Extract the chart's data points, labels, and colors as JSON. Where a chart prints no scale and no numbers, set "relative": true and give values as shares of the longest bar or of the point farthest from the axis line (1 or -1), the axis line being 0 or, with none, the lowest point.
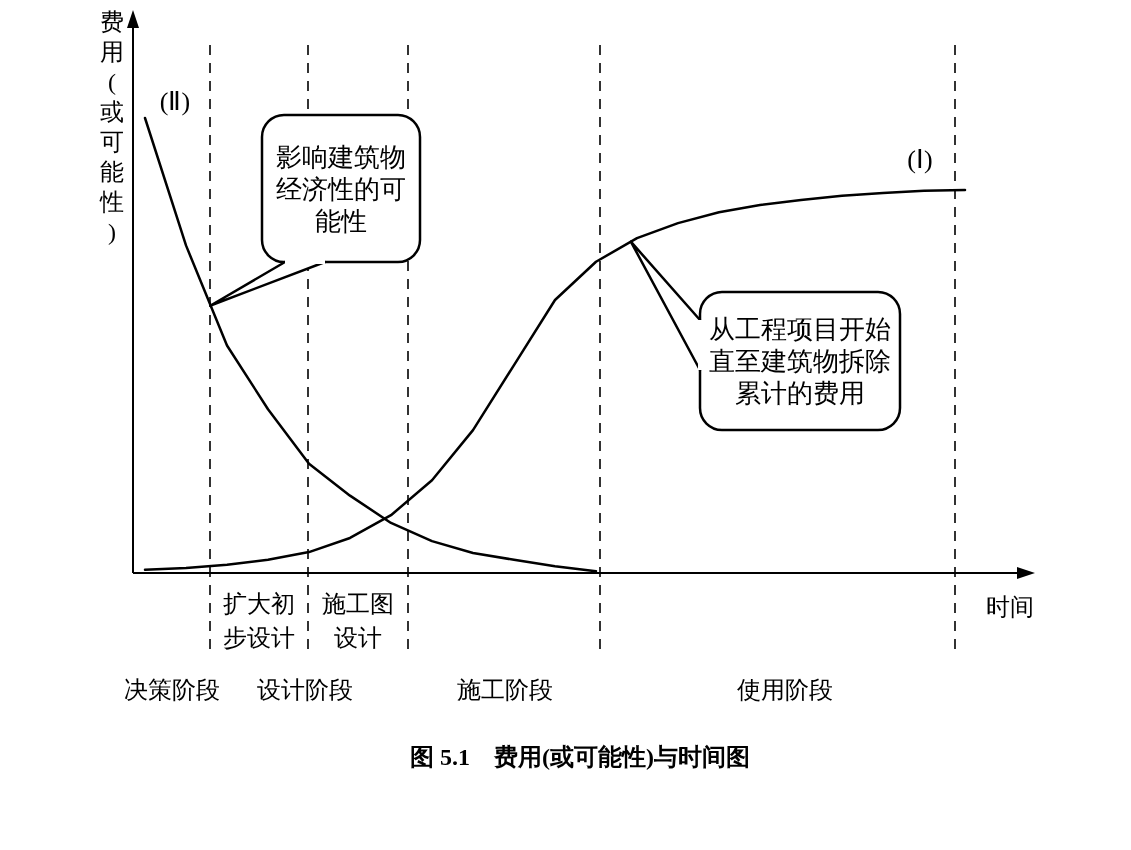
{
  "chart_data": {
    "type": "line",
    "relative": true,
    "title": "图 5.1　费用(或可能性)与时间图",
    "xlabel": "时间",
    "ylabel": "费用(或可能性)",
    "categories": [
      null,
      null,
      null,
      null,
      null,
      null,
      null,
      null,
      null,
      null,
      null,
      null,
      null,
      null,
      null,
      null,
      null,
      null,
      null,
      null,
      null
    ],
    "series": [
      {
        "name": "(Ⅰ)",
        "color": "#000000",
        "values": [
          0.007,
          0.011,
          0.018,
          0.029,
          0.046,
          0.077,
          0.127,
          0.204,
          0.314,
          0.457,
          0.6,
          0.684,
          0.736,
          0.769,
          0.793,
          0.809,
          0.82,
          0.829,
          0.835,
          0.84,
          0.842
        ]
      },
      {
        "name": "(Ⅱ)",
        "color": "#000000",
        "values": [
          1,
          0.72,
          0.5,
          0.36,
          0.24,
          0.17,
          0.11,
          0.07,
          0.044,
          0.029,
          0.015,
          0.004,
          null,
          null,
          null,
          null,
          null,
          null,
          null,
          null,
          null
        ]
      }
    ],
    "annotations": [
      "影响建筑物经济性的可能性",
      "从工程项目开始直至建筑物拆除累计的费用",
      "决策阶段",
      "设计阶段",
      "施工阶段",
      "使用阶段",
      "扩大初步设计",
      "施工图设计"
    ]
  }
}
